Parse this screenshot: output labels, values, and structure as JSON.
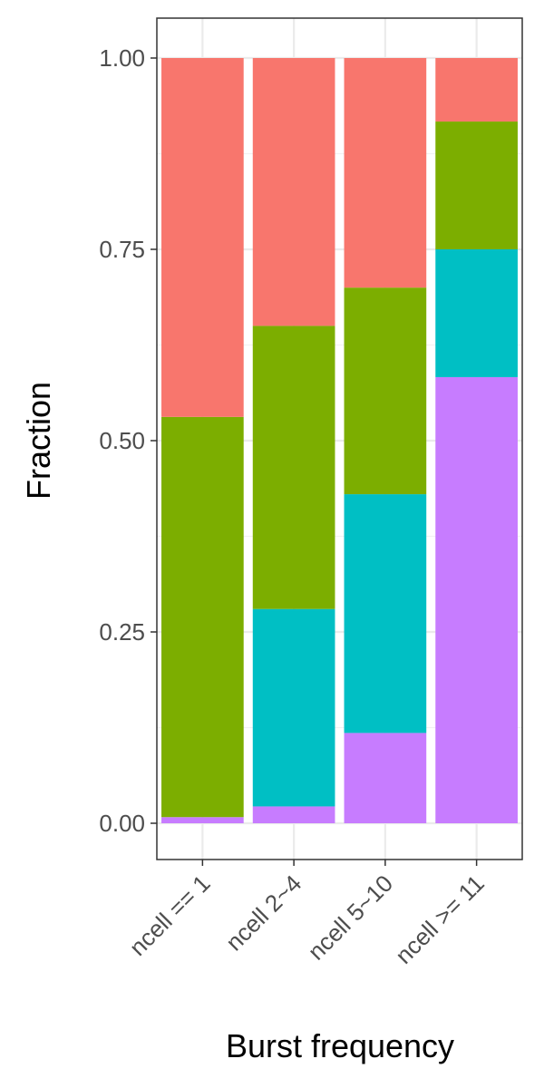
{
  "chart_data": {
    "type": "bar",
    "stacked": true,
    "categories": [
      "ncell == 1",
      "ncell 2~4",
      "ncell 5~10",
      "ncell >= 11"
    ],
    "series": [
      {
        "color": "#C77CFF",
        "values": [
          0.008,
          0.022,
          0.118,
          0.583
        ]
      },
      {
        "color": "#00BFC4",
        "values": [
          0.0,
          0.258,
          0.312,
          0.167
        ]
      },
      {
        "color": "#7CAE00",
        "values": [
          0.523,
          0.37,
          0.27,
          0.167
        ]
      },
      {
        "color": "#F8766D",
        "values": [
          0.469,
          0.35,
          0.3,
          0.083
        ]
      }
    ],
    "yticks": [
      "0.00",
      "0.25",
      "0.50",
      "0.75",
      "1.00"
    ],
    "ylim": [
      -0.05,
      1.05
    ],
    "xlabel": "Burst frequency",
    "ylabel": "Fraction",
    "grid": true,
    "legend": "none"
  }
}
